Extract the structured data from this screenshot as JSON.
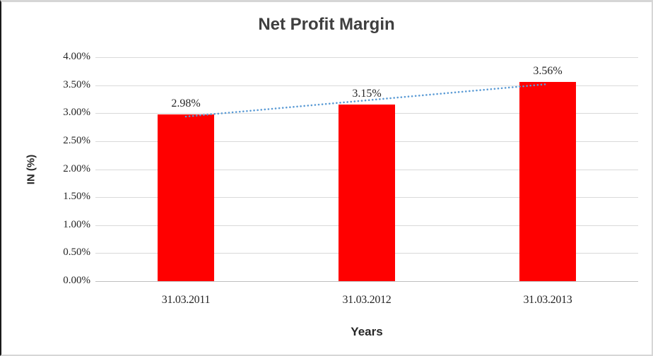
{
  "chart_data": {
    "type": "bar",
    "title": "Net Profit Margin",
    "xlabel": "Years",
    "ylabel": "IN (%)",
    "categories": [
      "31.03.2011",
      "31.03.2012",
      "31.03.2013"
    ],
    "values": [
      2.98,
      3.15,
      3.56
    ],
    "data_labels": [
      "2.98%",
      "3.15%",
      "3.56%"
    ],
    "ylim": [
      0,
      4
    ],
    "ytick_step": 0.5,
    "ytick_labels": [
      "0.00%",
      "0.50%",
      "1.00%",
      "1.50%",
      "2.00%",
      "2.50%",
      "3.00%",
      "3.50%",
      "4.00%"
    ],
    "grid": true,
    "legend": "none",
    "bar_color": "#FF0000",
    "gridline_color": "#d9d9d9",
    "axis_line_color": "#bfbfbf",
    "text_color": "#262626",
    "title_color": "#3f3f3f",
    "trendline": {
      "type": "linear",
      "style": "dotted",
      "color": "#5B9BD5"
    }
  }
}
